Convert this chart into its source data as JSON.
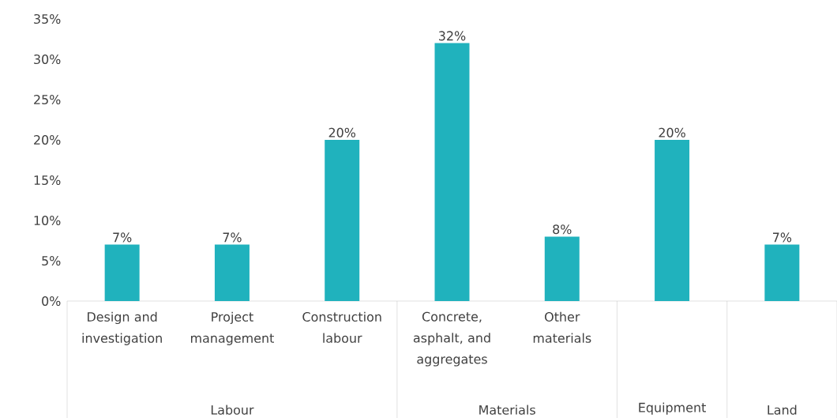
{
  "chart_data": {
    "type": "bar",
    "categories": [
      "Design and investigation",
      "Project management",
      "Construction labour",
      "Concrete, asphalt, and aggregates",
      "Other materials",
      null,
      null
    ],
    "values": [
      7,
      7,
      20,
      32,
      8,
      20,
      7
    ],
    "value_labels": [
      "7%",
      "7%",
      "20%",
      "32%",
      "8%",
      "20%",
      "7%"
    ],
    "color": "#20b2bd",
    "ylim": [
      0,
      35
    ],
    "yticks": [
      {
        "value": 0,
        "label": "0%"
      },
      {
        "value": 5,
        "label": "5%"
      },
      {
        "value": 10,
        "label": "10%"
      },
      {
        "value": 15,
        "label": "15%"
      },
      {
        "value": 20,
        "label": "20%"
      },
      {
        "value": 25,
        "label": "25%"
      },
      {
        "value": 30,
        "label": "30%"
      },
      {
        "value": 35,
        "label": "35%"
      }
    ],
    "annotations": [
      "Labour",
      "Materials",
      "Equipment",
      "Land"
    ],
    "grid": false
  }
}
